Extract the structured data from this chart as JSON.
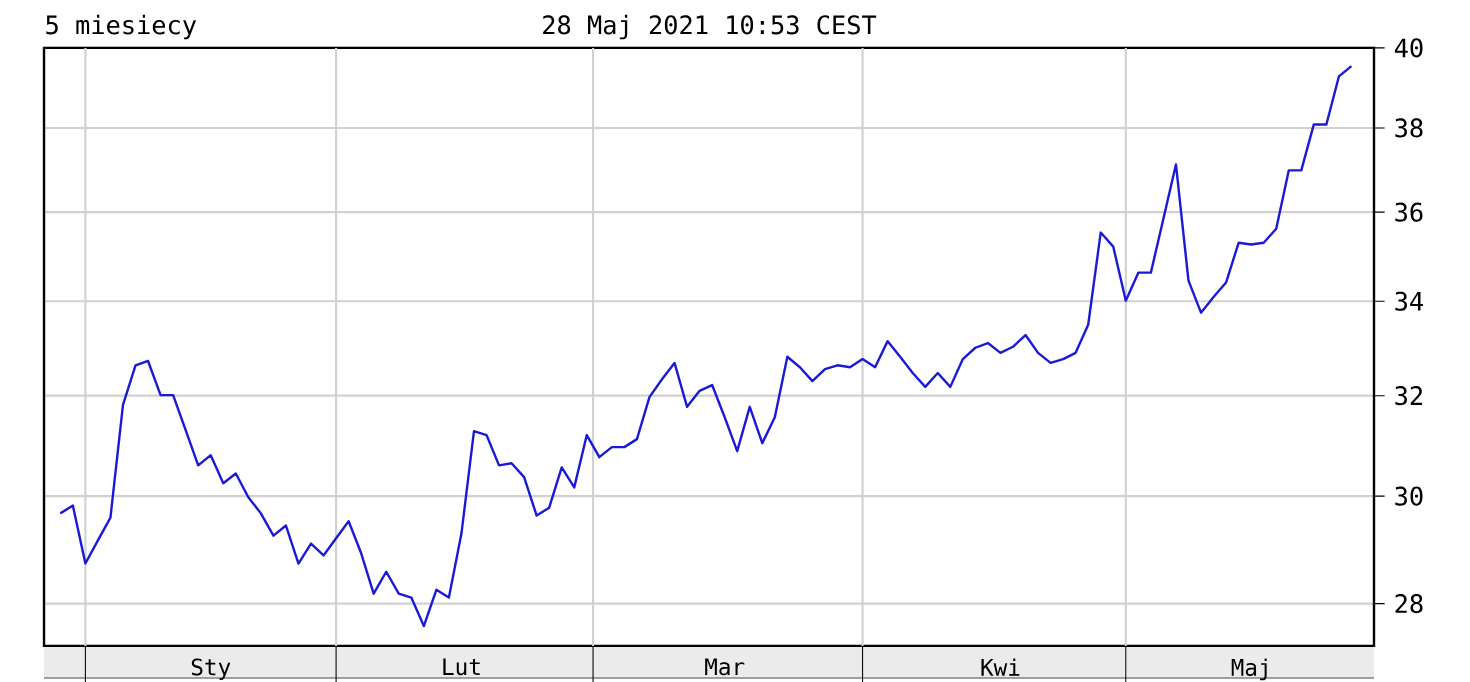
{
  "chart_data": {
    "type": "line",
    "title": "5 miesiecy",
    "subtitle": "28 Maj 2021 10:53 CEST",
    "categories": [
      null,
      null,
      null,
      null,
      null,
      null,
      null,
      null,
      null,
      null,
      null,
      null,
      "Sty",
      null,
      null,
      null,
      null,
      null,
      null,
      null,
      null,
      null,
      null,
      null,
      null,
      null,
      null,
      null,
      null,
      null,
      null,
      null,
      "Lut",
      null,
      null,
      null,
      null,
      null,
      null,
      null,
      null,
      null,
      null,
      null,
      null,
      null,
      null,
      null,
      null,
      null,
      null,
      null,
      null,
      "Mar",
      null,
      null,
      null,
      null,
      null,
      null,
      null,
      null,
      null,
      null,
      null,
      null,
      null,
      null,
      null,
      null,
      null,
      null,
      null,
      null,
      null,
      "Kwi",
      null,
      null,
      null,
      null,
      null,
      null,
      null,
      null,
      null,
      null,
      null,
      null,
      null,
      null,
      null,
      null,
      null,
      null,
      null,
      "Maj",
      null,
      null,
      null,
      null,
      null,
      null,
      null,
      null
    ],
    "values": [
      29.67,
      29.82,
      28.73,
      29.16,
      29.59,
      31.81,
      32.63,
      32.72,
      32.01,
      32.01,
      31.3,
      30.6,
      30.8,
      30.25,
      30.44,
      29.98,
      29.67,
      29.25,
      29.44,
      28.73,
      29.1,
      28.88,
      29.2,
      29.52,
      28.92,
      28.18,
      28.58,
      28.18,
      28.11,
      27.6,
      28.25,
      28.11,
      29.29,
      31.28,
      31.2,
      30.6,
      30.64,
      30.37,
      29.63,
      29.78,
      30.56,
      30.17,
      31.2,
      30.76,
      30.96,
      30.96,
      31.12,
      31.97,
      32.34,
      32.68,
      31.77,
      32.1,
      32.22,
      31.56,
      30.88,
      31.77,
      31.04,
      31.56,
      32.81,
      32.59,
      32.3,
      32.55,
      32.63,
      32.59,
      32.76,
      32.59,
      33.14,
      32.81,
      32.47,
      32.18,
      32.47,
      32.18,
      32.76,
      33.0,
      33.1,
      32.89,
      33.02,
      33.27,
      32.89,
      32.68,
      32.76,
      32.89,
      33.49,
      35.53,
      35.21,
      34.01,
      34.63,
      34.63,
      35.85,
      37.12,
      34.45,
      33.75,
      34.09,
      34.41,
      35.3,
      35.26,
      35.3,
      35.62,
      36.98,
      36.98,
      38.09,
      38.09,
      39.28,
      39.54
    ],
    "color": "#1a1ad6",
    "ylim": [
      27.25,
      40
    ],
    "yticks": [
      28,
      30,
      32,
      34,
      36,
      38,
      40
    ],
    "log": true,
    "grid": true
  }
}
